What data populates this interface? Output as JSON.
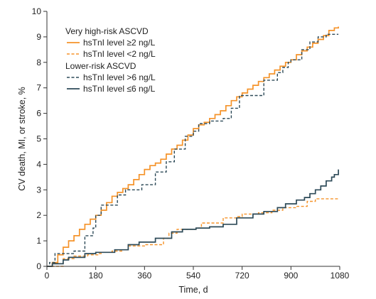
{
  "chart_data": {
    "type": "line",
    "title": "",
    "xlabel": "Time, d",
    "ylabel": "CV death, MI, or stroke, %",
    "xlim": [
      0,
      1080
    ],
    "ylim": [
      0,
      10
    ],
    "xticks": [
      0,
      180,
      360,
      540,
      720,
      900,
      1080
    ],
    "yticks": [
      0,
      1,
      2,
      3,
      4,
      5,
      6,
      7,
      8,
      9,
      10
    ],
    "grid": false,
    "legend": {
      "placement": "top-left",
      "groups": [
        {
          "title": "Very high-risk ASCVD",
          "entries": [
            "hsTnI level ≥2 ng/L",
            "hsTnI level <2 ng/L"
          ]
        },
        {
          "title": "Lower-risk ASCVD",
          "entries": [
            "hsTnI level >6 ng/L",
            "hsTnI level ≤6 ng/L"
          ]
        }
      ]
    },
    "series": [
      {
        "name": "hsTnI level ≥2 ng/L",
        "color": "#f5932a",
        "dash": "solid",
        "x": [
          0,
          20,
          40,
          60,
          80,
          100,
          120,
          140,
          160,
          180,
          200,
          220,
          240,
          260,
          280,
          300,
          320,
          340,
          360,
          380,
          400,
          420,
          440,
          460,
          480,
          500,
          520,
          540,
          560,
          580,
          600,
          620,
          640,
          660,
          680,
          700,
          720,
          740,
          760,
          780,
          800,
          820,
          840,
          860,
          880,
          900,
          920,
          940,
          960,
          980,
          1000,
          1020,
          1040,
          1060,
          1075
        ],
        "y": [
          0,
          0.15,
          0.45,
          0.75,
          1.0,
          1.2,
          1.45,
          1.65,
          1.85,
          2.0,
          2.2,
          2.5,
          2.75,
          2.9,
          3.05,
          3.2,
          3.4,
          3.6,
          3.8,
          3.95,
          4.05,
          4.2,
          4.4,
          4.6,
          4.75,
          4.95,
          5.15,
          5.4,
          5.55,
          5.65,
          5.8,
          5.95,
          6.1,
          6.3,
          6.5,
          6.65,
          6.8,
          6.95,
          7.1,
          7.25,
          7.4,
          7.55,
          7.7,
          7.85,
          8.0,
          8.1,
          8.3,
          8.45,
          8.6,
          8.75,
          8.9,
          9.05,
          9.25,
          9.35,
          9.4
        ]
      },
      {
        "name": "hsTnI level <2 ng/L",
        "color": "#f5932a",
        "dash": "dashed",
        "x": [
          0,
          60,
          100,
          150,
          190,
          200,
          240,
          280,
          300,
          360,
          430,
          450,
          480,
          550,
          570,
          650,
          700,
          720,
          780,
          830,
          870,
          920,
          960,
          990,
          1075
        ],
        "y": [
          0,
          0.3,
          0.4,
          0.45,
          0.5,
          0.55,
          0.6,
          0.65,
          0.8,
          0.85,
          1.1,
          1.3,
          1.45,
          1.5,
          1.7,
          1.9,
          1.95,
          2.05,
          2.1,
          2.2,
          2.3,
          2.35,
          2.55,
          2.65,
          2.65
        ]
      },
      {
        "name": "hsTnI level >6 ng/L",
        "color": "#2d4a58",
        "dash": "dashed",
        "x": [
          0,
          10,
          30,
          100,
          140,
          170,
          180,
          200,
          260,
          290,
          350,
          400,
          440,
          470,
          510,
          540,
          560,
          600,
          620,
          650,
          680,
          710,
          800,
          850,
          870,
          890,
          900,
          940,
          970,
          980,
          1000,
          1030,
          1060,
          1075
        ],
        "y": [
          0,
          0.15,
          0.5,
          0.6,
          1.2,
          1.5,
          2.0,
          2.4,
          2.8,
          3.0,
          3.2,
          3.7,
          4.1,
          4.6,
          5.1,
          5.3,
          5.6,
          5.7,
          5.7,
          5.8,
          6.2,
          6.7,
          7.3,
          7.6,
          7.8,
          8.0,
          8.1,
          8.5,
          8.8,
          8.8,
          9.0,
          9.1,
          9.1,
          9.1
        ]
      },
      {
        "name": "hsTnI level ≤6 ng/L",
        "color": "#2d4a58",
        "dash": "solid",
        "x": [
          0,
          20,
          60,
          80,
          140,
          180,
          250,
          300,
          340,
          400,
          460,
          500,
          550,
          600,
          650,
          700,
          760,
          800,
          850,
          880,
          920,
          950,
          970,
          990,
          1010,
          1030,
          1050,
          1060,
          1075
        ],
        "y": [
          0,
          0.1,
          0.25,
          0.35,
          0.5,
          0.55,
          0.65,
          0.85,
          0.95,
          1.1,
          1.35,
          1.45,
          1.5,
          1.55,
          1.65,
          1.9,
          2.05,
          2.15,
          2.3,
          2.45,
          2.6,
          2.7,
          2.85,
          3.0,
          3.15,
          3.35,
          3.5,
          3.6,
          3.8
        ]
      }
    ]
  }
}
